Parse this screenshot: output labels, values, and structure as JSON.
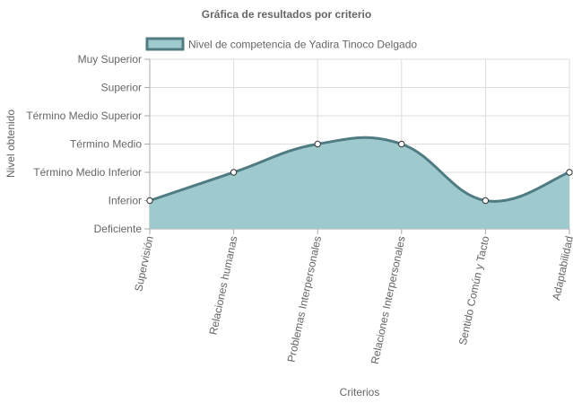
{
  "chart_data": {
    "type": "area",
    "title": "Gráfica de resultados por criterio",
    "xlabel": "Criterios",
    "ylabel": "Nivel obtenido",
    "y_levels": [
      "Deficiente",
      "Inferior",
      "Término Medio Inferior",
      "Término Medio",
      "Término Medio Superior",
      "Superior",
      "Muy Superior"
    ],
    "ylim": [
      0,
      6
    ],
    "categories": [
      "Supervisión",
      "Relaciones humanas",
      "Problemas Interpersonales",
      "Relaciones Interpersonales",
      "Sentido Común y Tacto",
      "Adaptabilidad"
    ],
    "series": [
      {
        "name": "Nivel de competencia de Yadira Tinoco Delgado",
        "values": [
          1,
          2,
          3,
          3,
          1,
          2
        ]
      }
    ],
    "grid": true,
    "legend_position": "top",
    "colors": {
      "fill": "#9fcacd",
      "line": "#4f7b82",
      "grid": "#dddddd",
      "axis": "#aaaaaa",
      "text": "#666666"
    }
  }
}
